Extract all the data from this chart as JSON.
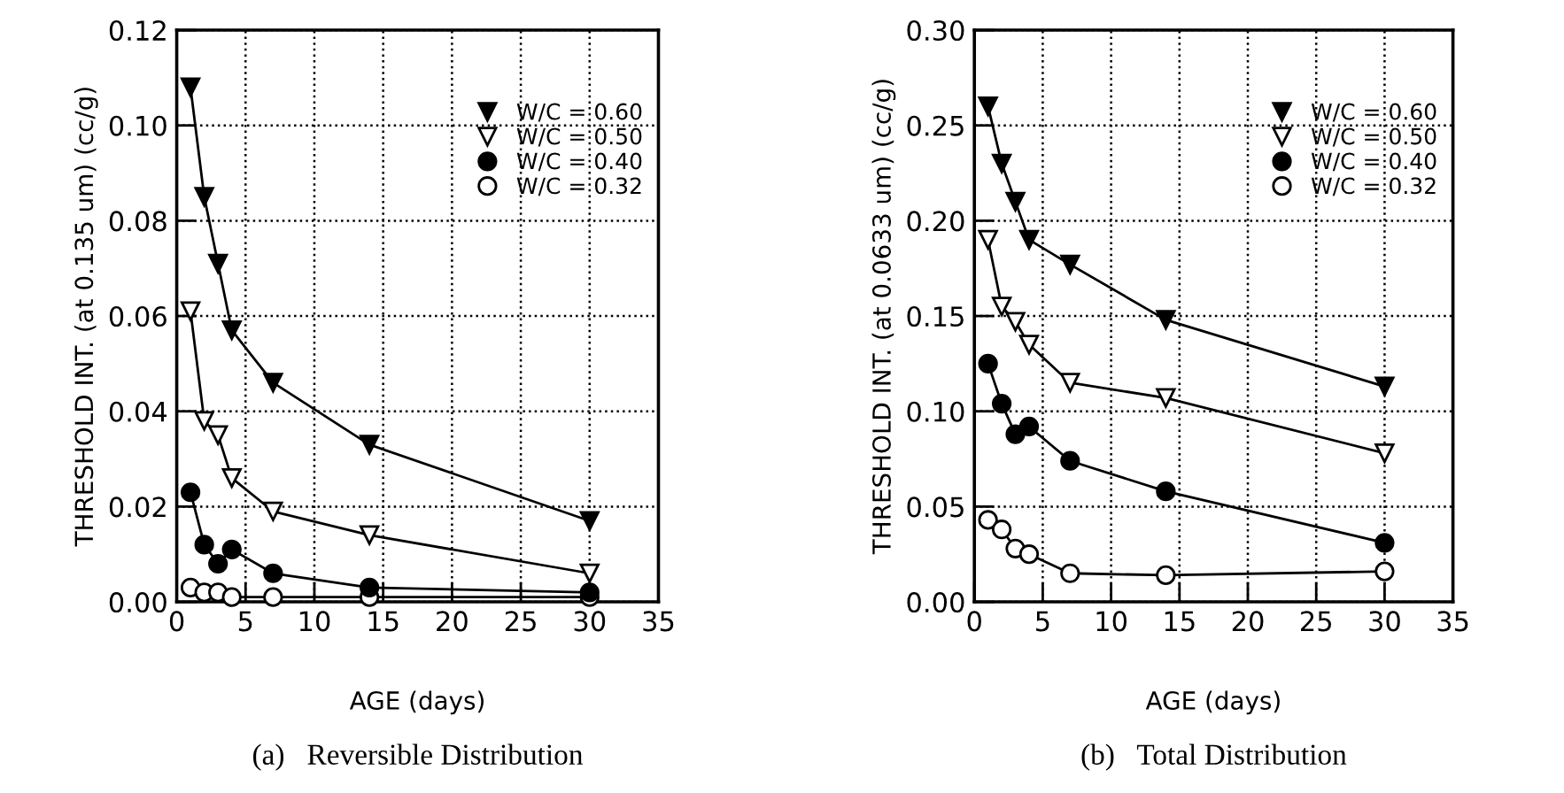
{
  "chart_data": [
    {
      "type": "line",
      "title": "(a)   Reversible Distribution",
      "xlabel": "AGE (days)",
      "ylabel": "THRESHOLD INT. (at 0.135 um) (cc/g)",
      "x": [
        1,
        2,
        3,
        4,
        7,
        14,
        30
      ],
      "xlim": [
        0,
        35
      ],
      "xticks": [
        0,
        5,
        10,
        15,
        20,
        25,
        30,
        35
      ],
      "ylim": [
        0,
        0.12
      ],
      "yticks": [
        {
          "value": 0,
          "label": "0.00"
        },
        {
          "value": 0.02,
          "label": "0.02"
        },
        {
          "value": 0.04,
          "label": "0.04"
        },
        {
          "value": 0.06,
          "label": "0.06"
        },
        {
          "value": 0.08,
          "label": "0.08"
        },
        {
          "value": 0.1,
          "label": "0.10"
        },
        {
          "value": 0.12,
          "label": "0.12"
        }
      ],
      "grid": true,
      "legend": "top right",
      "line_style": "solid",
      "series": [
        {
          "name": "W/C = 0.60",
          "color": "#000000",
          "marker": "triangle",
          "values": [
            0.108,
            0.085,
            0.071,
            0.057,
            0.046,
            0.033,
            0.017
          ]
        },
        {
          "name": "W/C = 0.50",
          "color": "#ffffff",
          "marker": "triangle",
          "values": [
            0.061,
            0.038,
            0.035,
            0.026,
            0.019,
            0.014,
            0.006
          ]
        },
        {
          "name": "W/C = 0.40",
          "color": "#000000",
          "marker": "circle",
          "values": [
            0.023,
            0.012,
            0.008,
            0.011,
            0.006,
            0.003,
            0.002
          ]
        },
        {
          "name": "W/C = 0.32",
          "color": "#ffffff",
          "marker": "circle",
          "values": [
            0.003,
            0.002,
            0.002,
            0.001,
            0.001,
            0.001,
            0.001
          ]
        }
      ]
    },
    {
      "type": "line",
      "title": "(b)   Total Distribution",
      "xlabel": "AGE (days)",
      "ylabel": "THRESHOLD INT. (at 0.0633 um) (cc/g)",
      "x": [
        1,
        2,
        3,
        4,
        7,
        14,
        30
      ],
      "xlim": [
        0,
        35
      ],
      "xticks": [
        0,
        5,
        10,
        15,
        20,
        25,
        30,
        35
      ],
      "ylim": [
        0,
        0.3
      ],
      "yticks": [
        {
          "value": 0,
          "label": "0.00"
        },
        {
          "value": 0.05,
          "label": "0.05"
        },
        {
          "value": 0.1,
          "label": "0.10"
        },
        {
          "value": 0.15,
          "label": "0.15"
        },
        {
          "value": 0.2,
          "label": "0.20"
        },
        {
          "value": 0.25,
          "label": "0.25"
        },
        {
          "value": 0.3,
          "label": "0.30"
        }
      ],
      "grid": true,
      "legend": "top right",
      "line_style": "solid",
      "series": [
        {
          "name": "W/C = 0.60",
          "color": "#000000",
          "marker": "triangle",
          "values": [
            0.26,
            0.23,
            0.21,
            0.19,
            0.177,
            0.148,
            0.113
          ]
        },
        {
          "name": "W/C = 0.50",
          "color": "#ffffff",
          "marker": "triangle",
          "values": [
            0.19,
            0.155,
            0.147,
            0.135,
            0.115,
            0.107,
            0.078
          ]
        },
        {
          "name": "W/C = 0.40",
          "color": "#000000",
          "marker": "circle",
          "values": [
            0.125,
            0.104,
            0.088,
            0.092,
            0.074,
            0.058,
            0.031
          ]
        },
        {
          "name": "W/C = 0.32",
          "color": "#ffffff",
          "marker": "circle",
          "values": [
            0.043,
            0.038,
            0.028,
            0.025,
            0.015,
            0.014,
            0.016
          ]
        }
      ]
    }
  ]
}
